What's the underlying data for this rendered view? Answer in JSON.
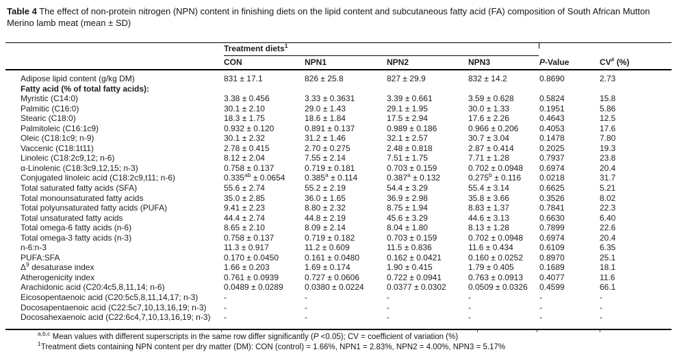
{
  "caption": {
    "label": "Table 4",
    "text": "The effect of non-protein nitrogen (NPN) content in finishing diets on the lipid content and subcutaneous fatty acid (FA) composition of South African Mutton Merino lamb meat (mean ± SD)"
  },
  "table": {
    "group_header": "Treatment diets^{1}",
    "columns": [
      "CON",
      "NPN1",
      "NPN2",
      "NPN3",
      "*P*-Value",
      "CV^{#} (%)"
    ],
    "rows": [
      {
        "label": "Adipose lipid content (g/kg DM)",
        "bold": false,
        "values": [
          "831 ± 17.1",
          "826 ± 25.8",
          "827 ± 29.9",
          "832 ± 14.2",
          "0.8690",
          "2.73"
        ]
      },
      {
        "label": "Fatty acid (% of total fatty acids):",
        "bold": true,
        "values": [
          "",
          "",
          "",
          "",
          "",
          ""
        ]
      },
      {
        "label": "Myristic (C14:0)",
        "bold": false,
        "values": [
          "3.38 ± 0.456",
          "3.33 ± 0.3631",
          "3.39 ± 0.661",
          "3.59 ± 0.628",
          "0.5824",
          "15.8"
        ]
      },
      {
        "label": "Palmitic (C16:0)",
        "bold": false,
        "values": [
          "30.1 ± 2.10",
          "29.0 ± 1.43",
          "29.1 ± 1.95",
          "30.0 ± 1.33",
          "0.1951",
          "5.86"
        ]
      },
      {
        "label": "Stearic (C18:0)",
        "bold": false,
        "values": [
          "18.3 ± 1.75",
          "18.6 ± 1.84",
          "17.5 ± 2.94",
          "17.6 ± 2.26",
          "0.4643",
          "12.5"
        ]
      },
      {
        "label": "Palmitoleic (C16:1c9)",
        "bold": false,
        "values": [
          "0.932 ± 0.120",
          "0.891 ± 0.137",
          "0.989 ± 0.186",
          "0.966 ± 0.206",
          "0.4053",
          "17.6"
        ]
      },
      {
        "label": "Oleic (C18:1c9; n-9)",
        "bold": false,
        "values": [
          "30.1 ± 2.32",
          "31.2 ± 1.46",
          "32.1 ± 2.57",
          "30.7 ± 3.04",
          "0.1478",
          "7.80"
        ]
      },
      {
        "label": "Vaccenic (C18:1t11)",
        "bold": false,
        "values": [
          "2.78 ± 0.415",
          "2.70 ± 0.275",
          "2.48 ± 0.818",
          "2.87 ± 0.414",
          "0.2025",
          "19.3"
        ]
      },
      {
        "label": "Linoleic (C18:2c9,12; n-6)",
        "bold": false,
        "values": [
          "8.12 ± 2.04",
          "7.55 ± 2.14",
          "7.51 ± 1.75",
          "7.71 ± 1.28",
          "0.7937",
          "23.8"
        ]
      },
      {
        "label": "α-Linolenic (C18:3c9,12,15; n-3)",
        "bold": false,
        "values": [
          "0.758 ± 0.137",
          "0.719 ± 0.181",
          "0.703 ± 0.159",
          "0.702 ± 0.0948",
          "0.6974",
          "20.4"
        ]
      },
      {
        "label": "Conjugated linoleic acid (C18:2c9,t11; n-6)",
        "bold": false,
        "values": [
          "0.335^{ab} ± 0.0654",
          "0.385^{a} ± 0.114",
          "0.387^{a} ± 0.132",
          "0.275^{b} ± 0.116",
          "0.0218",
          "31.7"
        ]
      },
      {
        "label": "Total saturated fatty acids (SFA)",
        "bold": false,
        "values": [
          "55.6 ± 2.74",
          "55.2 ± 2.19",
          "54.4 ± 3.29",
          "55.4 ± 3.14",
          "0.6625",
          "5.21"
        ]
      },
      {
        "label": "Total monounsaturated fatty acids",
        "bold": false,
        "values": [
          "35.0 ± 2.85",
          "36.0 ± 1.65",
          "36.9 ± 2.98",
          "35.8 ± 3.66",
          "0.3526",
          "8.02"
        ]
      },
      {
        "label": "Total polyunsaturated fatty acids (PUFA)",
        "bold": false,
        "values": [
          "9.41 ± 2.23",
          "8.80 ± 2.32",
          "8.75 ± 1.94",
          "8.83 ± 1.37",
          "0.7841",
          "22.3"
        ]
      },
      {
        "label": "Total unsaturated fatty acids",
        "bold": false,
        "values": [
          "44.4 ± 2.74",
          "44.8 ± 2.19",
          "45.6 ± 3.29",
          "44.6 ± 3.13",
          "0.6630",
          "6.40"
        ]
      },
      {
        "label": "Total omega-6 fatty acids (n-6)",
        "bold": false,
        "values": [
          "8.65 ± 2.10",
          "8.09 ± 2.14",
          "8.04 ± 1.80",
          "8.13 ± 1.28",
          "0.7899",
          "22.6"
        ]
      },
      {
        "label": "Total omega-3 fatty acids (n-3)",
        "bold": false,
        "values": [
          "0.758 ± 0.137",
          "0.719 ± 0.182",
          "0.703 ± 0.159",
          "0.702 ± 0.0948",
          "0.6974",
          "20.4"
        ]
      },
      {
        "label": "n-6:n-3",
        "bold": false,
        "values": [
          "11.3 ± 0.917",
          "11.2 ± 0.609",
          "11.5 ± 0.836",
          "11.6 ± 0.434",
          "0.6109",
          "6.35"
        ]
      },
      {
        "label": "PUFA:SFA",
        "bold": false,
        "values": [
          "0.170 ± 0.0450",
          "0.161 ± 0.0480",
          "0.162 ± 0.0421",
          "0.160 ± 0.0252",
          "0.8970",
          "25.1"
        ]
      },
      {
        "label": "Δ^{9} desaturase index",
        "bold": false,
        "values": [
          "1.66 ± 0.203",
          "1.69 ± 0.174",
          "1.90 ± 0.415",
          "1.79 ± 0.405",
          "0.1689",
          "18.1"
        ]
      },
      {
        "label": "Atherogenicity index",
        "bold": false,
        "values": [
          "0.761 ± 0.0939",
          "0.727 ± 0.0606",
          "0.722 ± 0.0941",
          "0.763 ± 0.0913",
          "0.4077",
          "11.6"
        ]
      },
      {
        "label": "Arachidonic acid (C20:4c5,8,11,14; n-6)",
        "bold": false,
        "values": [
          "0.0489 ± 0.0289",
          "0.0380 ± 0.0224",
          "0.0377 ± 0.0302",
          "0.0509 ± 0.0326",
          "0.4599",
          "66.1"
        ]
      },
      {
        "label": "Eicosopentaenoic acid (C20:5c5,8,11,14,17; n-3)",
        "bold": false,
        "values": [
          "-",
          "-",
          "-",
          "-",
          "-",
          "-"
        ]
      },
      {
        "label": "Docosapentaenoic acid (C22:5c7,10,13,16,19; n-3)",
        "bold": false,
        "values": [
          "-",
          "-",
          "-",
          "-",
          "-",
          "-"
        ]
      },
      {
        "label": "Docosahexaenoic acid (C22:6c4,7,10,13,16,19; n-3)",
        "bold": false,
        "values": [
          "-",
          "-",
          "-",
          "-",
          "-",
          "-"
        ]
      }
    ]
  },
  "footnotes": [
    "^{a,b,c} Mean values with different superscripts in the same row differ significantly (*P* <0.05); CV = coefficient of variation (%)",
    "^{1}Treatment diets containing NPN content per dry matter (DM): CON (control) = 1.66%, NPN1 = 2.83%, NPN2 = 4.00%, NPN3 = 5.17%"
  ],
  "colors": {
    "background": "#ffffff",
    "text": "#1c1c1c",
    "rule": "#000000"
  }
}
